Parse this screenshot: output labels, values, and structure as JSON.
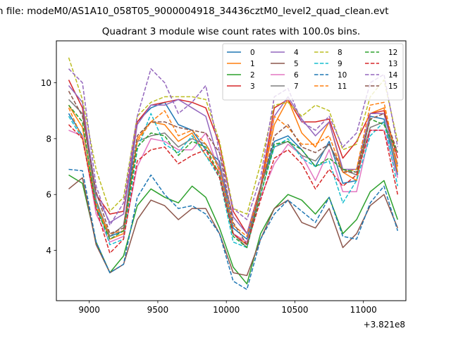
{
  "chart_data": {
    "type": "line",
    "suptitle": "n file: modeM0/AS1A10_058T05_9000004918_34436cztM0_level2_quad_clean.evt",
    "title": "Quadrant 3 module wise count rates with 100.0s bins.",
    "xlabel": "",
    "ylabel": "",
    "x_offset_label": "+3.821e8",
    "xlim": [
      8760,
      11310
    ],
    "ylim": [
      2.2,
      11.5
    ],
    "xticks": [
      9000,
      9500,
      10000,
      10500,
      11000
    ],
    "yticks": [
      4,
      6,
      8,
      10
    ],
    "grid": false,
    "legend_position": "top-right",
    "legend_columns": 4,
    "x": [
      8850,
      8950,
      9050,
      9150,
      9250,
      9350,
      9450,
      9550,
      9650,
      9750,
      9850,
      9950,
      10050,
      10150,
      10250,
      10350,
      10450,
      10550,
      10650,
      10750,
      10850,
      10950,
      11050,
      11150,
      11250
    ],
    "series": [
      {
        "name": "0",
        "color": "#1f77b4",
        "style": "solid",
        "values": [
          8.9,
          8.1,
          5.5,
          4.5,
          4.7,
          8.6,
          9.1,
          9.3,
          8.5,
          8.3,
          7.6,
          7.2,
          4.8,
          4.4,
          6.3,
          7.9,
          8.1,
          7.6,
          7.0,
          7.9,
          6.4,
          6.5,
          8.8,
          8.7,
          6.7
        ]
      },
      {
        "name": "1",
        "color": "#ff7f0e",
        "style": "solid",
        "values": [
          9.2,
          8.4,
          5.7,
          4.4,
          4.6,
          8.0,
          8.6,
          8.5,
          7.9,
          8.2,
          7.4,
          6.8,
          4.6,
          4.2,
          6.2,
          8.5,
          9.4,
          8.2,
          7.7,
          8.6,
          6.8,
          6.5,
          8.9,
          9.1,
          6.8
        ]
      },
      {
        "name": "2",
        "color": "#2ca02c",
        "style": "solid",
        "values": [
          6.7,
          6.4,
          4.3,
          3.2,
          3.8,
          5.6,
          6.2,
          5.9,
          5.7,
          6.3,
          5.9,
          4.8,
          3.4,
          2.8,
          4.6,
          5.5,
          6.0,
          5.8,
          5.3,
          5.9,
          4.6,
          5.1,
          6.1,
          6.5,
          5.1
        ]
      },
      {
        "name": "3",
        "color": "#d62728",
        "style": "solid",
        "values": [
          10.1,
          9.1,
          6.0,
          5.3,
          5.4,
          8.6,
          9.2,
          9.3,
          9.4,
          9.3,
          9.1,
          7.8,
          5.4,
          4.6,
          6.3,
          9.1,
          9.4,
          8.6,
          8.6,
          8.7,
          7.3,
          7.9,
          8.9,
          9.0,
          7.3
        ]
      },
      {
        "name": "4",
        "color": "#9467bd",
        "style": "solid",
        "values": [
          9.9,
          9.3,
          6.0,
          5.0,
          5.3,
          8.5,
          9.2,
          9.2,
          9.4,
          9.1,
          8.8,
          7.1,
          5.2,
          4.6,
          6.2,
          8.8,
          9.5,
          8.7,
          8.1,
          8.6,
          6.9,
          6.9,
          8.9,
          8.9,
          7.0
        ]
      },
      {
        "name": "5",
        "color": "#8c564b",
        "style": "solid",
        "values": [
          6.2,
          6.6,
          4.2,
          3.2,
          3.5,
          5.1,
          5.8,
          5.6,
          5.1,
          5.5,
          5.5,
          4.6,
          3.2,
          3.1,
          4.4,
          5.5,
          5.8,
          5.0,
          4.8,
          5.5,
          4.1,
          4.6,
          5.6,
          6.0,
          4.8
        ]
      },
      {
        "name": "6",
        "color": "#e377c2",
        "style": "solid",
        "values": [
          8.3,
          8.1,
          5.3,
          4.3,
          4.5,
          7.0,
          8.0,
          7.9,
          7.6,
          7.6,
          8.2,
          6.8,
          4.6,
          4.3,
          5.9,
          7.1,
          7.8,
          7.4,
          6.5,
          7.6,
          6.1,
          6.1,
          8.3,
          8.3,
          6.6
        ]
      },
      {
        "name": "7",
        "color": "#7f7f7f",
        "style": "solid",
        "values": [
          9.4,
          8.9,
          5.8,
          4.5,
          4.9,
          7.9,
          8.1,
          8.2,
          7.7,
          8.0,
          7.8,
          7.0,
          4.6,
          4.1,
          6.3,
          7.7,
          7.9,
          7.4,
          7.2,
          7.8,
          6.9,
          6.7,
          8.4,
          8.6,
          7.1
        ]
      },
      {
        "name": "8",
        "color": "#bcbd22",
        "style": "dashed",
        "values": [
          10.9,
          9.4,
          6.9,
          5.4,
          5.9,
          8.8,
          9.3,
          9.5,
          9.5,
          9.5,
          9.4,
          7.9,
          5.5,
          5.3,
          7.1,
          9.2,
          9.3,
          8.8,
          9.2,
          9.0,
          7.6,
          7.8,
          9.5,
          10.1,
          7.9
        ]
      },
      {
        "name": "9",
        "color": "#17becf",
        "style": "dashed",
        "values": [
          8.8,
          8.0,
          5.7,
          4.2,
          4.4,
          7.6,
          8.9,
          7.8,
          7.5,
          8.1,
          7.4,
          6.6,
          4.3,
          4.1,
          6.0,
          7.7,
          8.0,
          7.3,
          7.0,
          7.2,
          5.7,
          6.5,
          8.1,
          8.6,
          6.3
        ]
      },
      {
        "name": "10",
        "color": "#1f77b4",
        "style": "dashed",
        "values": [
          6.9,
          6.85,
          4.3,
          3.2,
          3.5,
          5.9,
          6.7,
          6.0,
          5.5,
          5.6,
          5.3,
          4.6,
          2.9,
          2.6,
          4.4,
          5.3,
          5.8,
          5.4,
          5.0,
          5.9,
          4.5,
          4.4,
          5.7,
          6.3,
          4.7
        ]
      },
      {
        "name": "11",
        "color": "#ff7f0e",
        "style": "dashed",
        "values": [
          9.1,
          8.0,
          5.6,
          4.6,
          4.7,
          7.9,
          8.6,
          9.0,
          8.1,
          8.3,
          7.8,
          6.9,
          4.9,
          4.5,
          6.2,
          8.8,
          8.4,
          7.8,
          7.8,
          8.1,
          6.8,
          6.9,
          9.2,
          9.3,
          7.0
        ]
      },
      {
        "name": "12",
        "color": "#2ca02c",
        "style": "dashed",
        "values": [
          9.2,
          8.6,
          5.5,
          4.4,
          4.7,
          7.7,
          8.2,
          8.1,
          7.4,
          7.9,
          7.7,
          6.7,
          4.5,
          4.1,
          6.0,
          7.8,
          7.9,
          7.6,
          7.0,
          7.3,
          6.9,
          6.8,
          8.7,
          8.5,
          7.5
        ]
      },
      {
        "name": "13",
        "color": "#d62728",
        "style": "dashed",
        "values": [
          8.5,
          8.0,
          5.5,
          3.9,
          4.4,
          7.2,
          7.6,
          7.7,
          7.1,
          7.4,
          7.6,
          6.6,
          4.6,
          4.2,
          5.8,
          7.3,
          7.6,
          7.1,
          6.2,
          6.9,
          6.3,
          6.7,
          8.3,
          8.3,
          6.0
        ]
      },
      {
        "name": "14",
        "color": "#9467bd",
        "style": "dashed",
        "values": [
          10.5,
          10.0,
          6.3,
          4.9,
          5.7,
          8.8,
          10.5,
          10.0,
          8.9,
          9.3,
          9.9,
          7.5,
          5.5,
          5.1,
          6.6,
          9.5,
          9.8,
          8.6,
          8.3,
          8.8,
          7.7,
          8.2,
          10.0,
          10.3,
          7.7
        ]
      },
      {
        "name": "15",
        "color": "#8c564b",
        "style": "dashed",
        "values": [
          9.7,
          8.8,
          6.1,
          4.6,
          4.8,
          8.1,
          8.6,
          8.6,
          8.4,
          8.3,
          8.2,
          7.5,
          5.0,
          4.2,
          6.2,
          8.1,
          8.5,
          7.7,
          7.5,
          7.8,
          6.8,
          6.8,
          8.7,
          8.9,
          7.5
        ]
      }
    ]
  }
}
